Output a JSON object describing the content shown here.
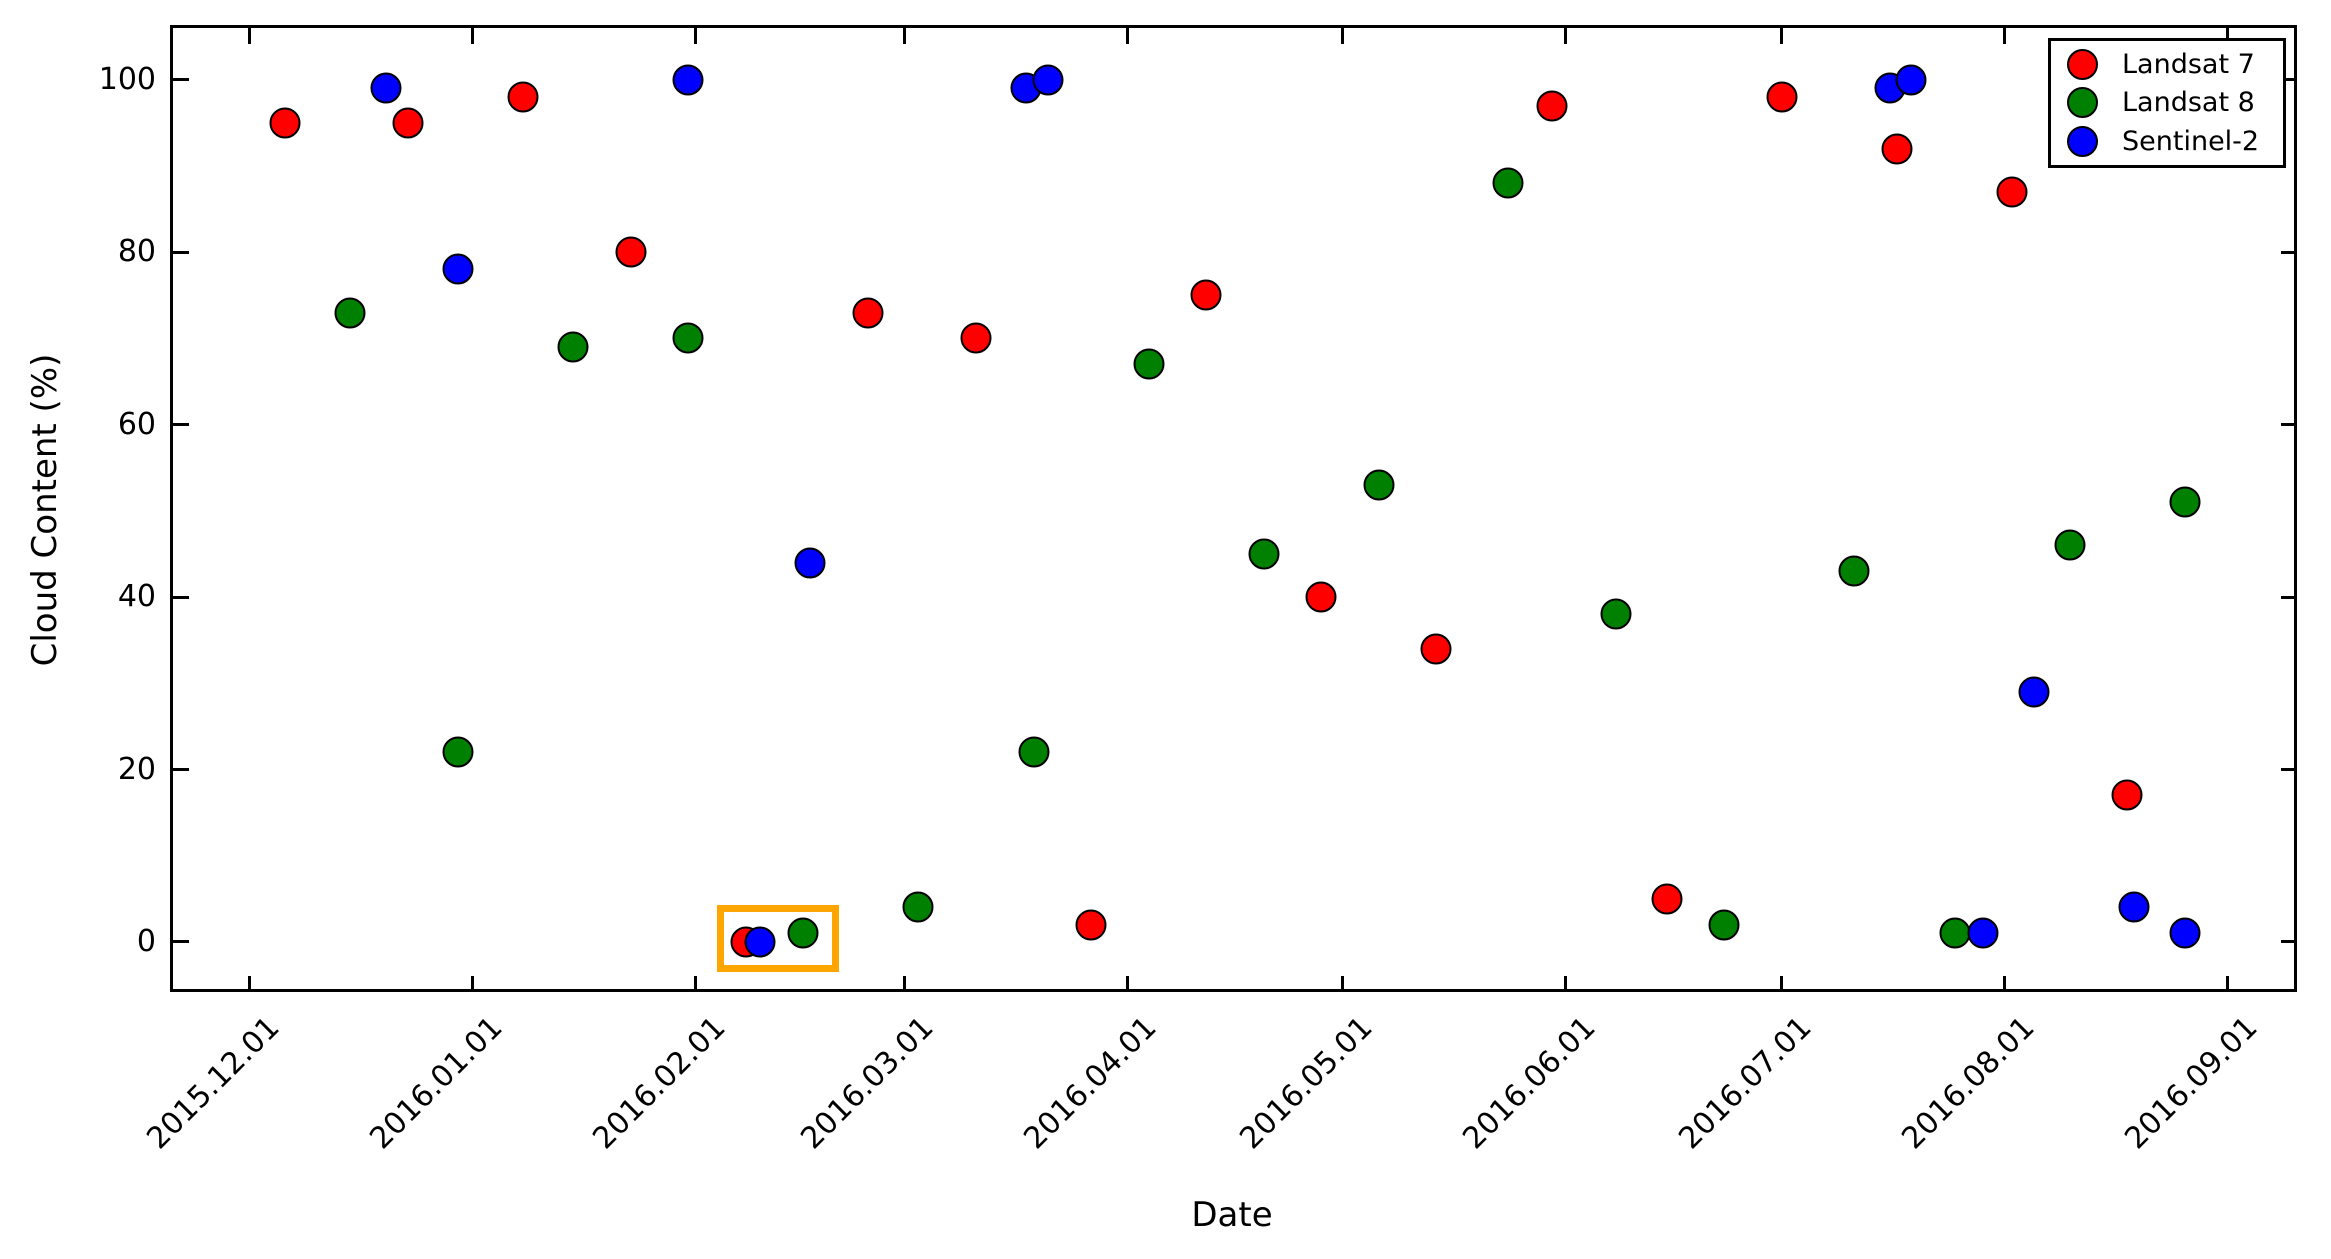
{
  "figure": {
    "background": "#ffffff"
  },
  "chart_data": {
    "type": "scatter",
    "title": "",
    "xlabel": "Date",
    "ylabel": "Cloud Content (%)",
    "grid": false,
    "legend_position": "upper right",
    "marker_edge_color": "#000000",
    "x_axis": {
      "epoch": "2015.12.01",
      "tick_labels": [
        "2015.12.01",
        "2016.01.01",
        "2016.02.01",
        "2016.03.01",
        "2016.04.01",
        "2016.05.01",
        "2016.06.01",
        "2016.07.01",
        "2016.08.01",
        "2016.09.01"
      ],
      "tick_days": [
        0,
        31,
        62,
        91,
        122,
        152,
        183,
        213,
        244,
        275
      ],
      "lim_days": [
        -10.6,
        284.6
      ]
    },
    "y_axis": {
      "ticks": [
        0,
        20,
        40,
        60,
        80,
        100
      ],
      "lim": [
        -5.8,
        106
      ]
    },
    "series": [
      {
        "name": "Landsat 7",
        "color": "#ff0000",
        "points": [
          [
            "2015.12.06",
            95
          ],
          [
            "2015.12.23",
            95
          ],
          [
            "2016.01.08",
            98
          ],
          [
            "2016.01.23",
            80
          ],
          [
            "2016.02.08",
            0
          ],
          [
            "2016.02.25",
            73
          ],
          [
            "2016.03.11",
            70
          ],
          [
            "2016.03.27",
            2
          ],
          [
            "2016.04.12",
            75
          ],
          [
            "2016.04.28",
            40
          ],
          [
            "2016.05.14",
            34
          ],
          [
            "2016.05.30",
            97
          ],
          [
            "2016.06.15",
            5
          ],
          [
            "2016.07.01",
            98
          ],
          [
            "2016.07.17",
            92
          ],
          [
            "2016.08.02",
            87
          ],
          [
            "2016.08.18",
            17
          ]
        ]
      },
      {
        "name": "Landsat 8",
        "color": "#008000",
        "points": [
          [
            "2015.12.15",
            73
          ],
          [
            "2015.12.30",
            22
          ],
          [
            "2016.01.15",
            69
          ],
          [
            "2016.01.31",
            70
          ],
          [
            "2016.02.16",
            1
          ],
          [
            "2016.03.03",
            4
          ],
          [
            "2016.03.19",
            22
          ],
          [
            "2016.04.04",
            67
          ],
          [
            "2016.04.20",
            45
          ],
          [
            "2016.05.06",
            53
          ],
          [
            "2016.05.24",
            88
          ],
          [
            "2016.06.08",
            38
          ],
          [
            "2016.06.23",
            2
          ],
          [
            "2016.07.11",
            43
          ],
          [
            "2016.07.25",
            1
          ],
          [
            "2016.08.10",
            46
          ],
          [
            "2016.08.26",
            51
          ]
        ]
      },
      {
        "name": "Sentinel-2",
        "color": "#0000ff",
        "points": [
          [
            "2015.12.20",
            99
          ],
          [
            "2015.12.30",
            78
          ],
          [
            "2016.01.31",
            100
          ],
          [
            "2016.02.10",
            0
          ],
          [
            "2016.02.17",
            44
          ],
          [
            "2016.03.18",
            99
          ],
          [
            "2016.03.21",
            100
          ],
          [
            "2016.07.16",
            99
          ],
          [
            "2016.07.19",
            100
          ],
          [
            "2016.07.29",
            1
          ],
          [
            "2016.08.05",
            29
          ],
          [
            "2016.08.19",
            4
          ],
          [
            "2016.08.26",
            1
          ]
        ]
      }
    ],
    "highlight_box": {
      "color": "#ffa500",
      "x_range": [
        "2016.02.04",
        "2016.02.21"
      ],
      "y_range": [
        -3.5,
        4.3
      ]
    }
  }
}
